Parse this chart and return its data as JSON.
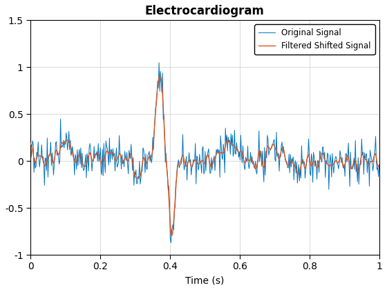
{
  "title": "Electrocardiogram",
  "xlabel": "Time (s)",
  "xlim": [
    0,
    1
  ],
  "ylim": [
    -1.0,
    1.5
  ],
  "yticks": [
    -1.0,
    -0.5,
    0.0,
    0.5,
    1.0,
    1.5
  ],
  "xticks": [
    0,
    0.2,
    0.4,
    0.6,
    0.8,
    1.0
  ],
  "original_color": "#0072BD",
  "filtered_color": "#D95319",
  "original_label": "Original Signal",
  "filtered_label": "Filtered Shifted Signal",
  "original_lw": 0.7,
  "filtered_lw": 1.0,
  "seed": 0,
  "n_samples": 500,
  "title_fontsize": 12,
  "label_fontsize": 10,
  "tick_fontsize": 10
}
